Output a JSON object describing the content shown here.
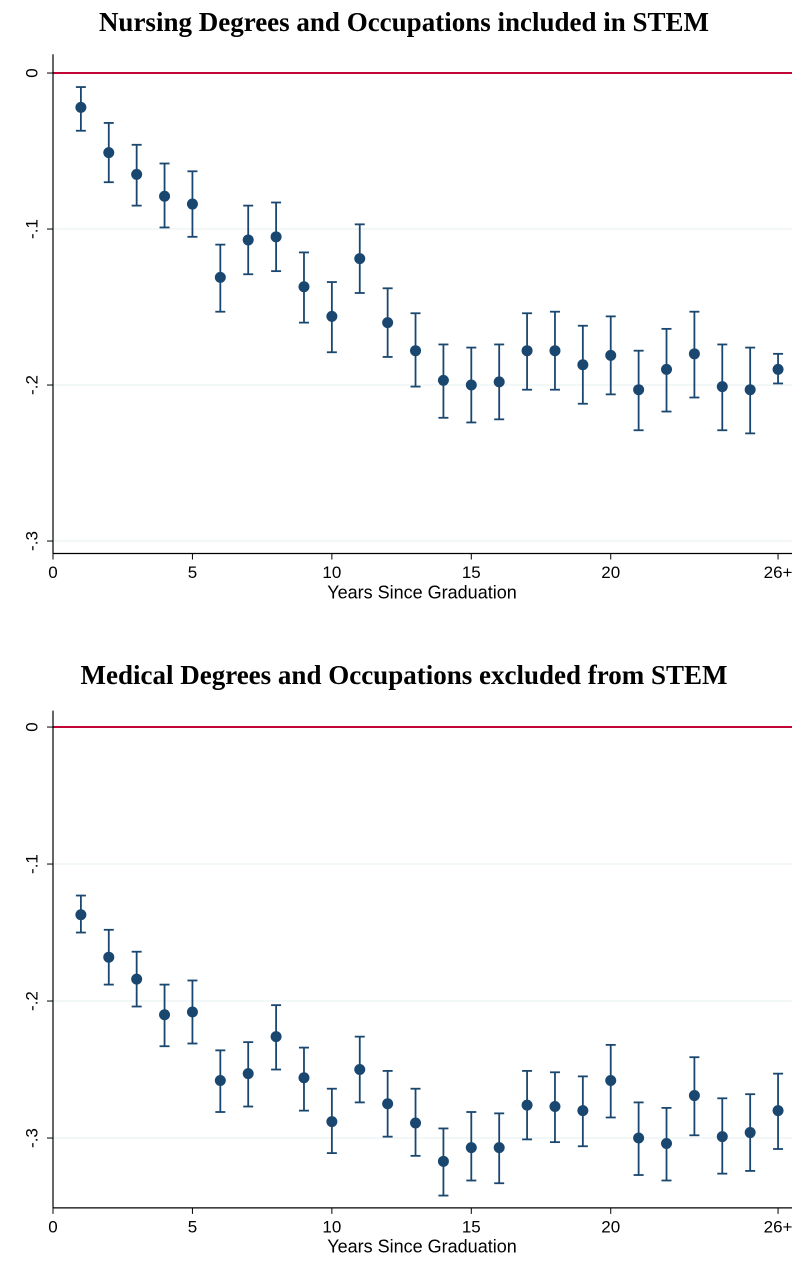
{
  "chart_data": [
    {
      "type": "errorbar",
      "title": "Nursing Degrees and Occupations included in STEM",
      "x_label": "Years Since Graduation",
      "x": [
        1,
        2,
        3,
        4,
        5,
        6,
        7,
        8,
        9,
        10,
        11,
        12,
        13,
        14,
        15,
        16,
        17,
        18,
        19,
        20,
        21,
        22,
        23,
        24,
        25,
        26
      ],
      "values": [
        -0.022,
        -0.051,
        -0.065,
        -0.079,
        -0.084,
        -0.131,
        -0.107,
        -0.105,
        -0.137,
        -0.156,
        -0.119,
        -0.16,
        -0.178,
        -0.197,
        -0.2,
        -0.198,
        -0.178,
        -0.178,
        -0.187,
        -0.181,
        -0.203,
        -0.19,
        -0.18,
        -0.201,
        -0.203,
        -0.19
      ],
      "upper": [
        -0.009,
        -0.032,
        -0.046,
        -0.058,
        -0.063,
        -0.11,
        -0.085,
        -0.083,
        -0.115,
        -0.134,
        -0.097,
        -0.138,
        -0.154,
        -0.174,
        -0.176,
        -0.174,
        -0.154,
        -0.153,
        -0.162,
        -0.156,
        -0.178,
        -0.164,
        -0.153,
        -0.174,
        -0.176,
        -0.18
      ],
      "lower": [
        -0.037,
        -0.07,
        -0.085,
        -0.099,
        -0.105,
        -0.153,
        -0.129,
        -0.127,
        -0.16,
        -0.179,
        -0.141,
        -0.182,
        -0.201,
        -0.221,
        -0.224,
        -0.222,
        -0.203,
        -0.203,
        -0.212,
        -0.206,
        -0.229,
        -0.217,
        -0.208,
        -0.229,
        -0.231,
        -0.199
      ],
      "color": "#1a476f",
      "reference_line": 0,
      "reference_color": "#c10534",
      "xlim": [
        0,
        26.5
      ],
      "xticks": [
        0,
        5,
        10,
        15,
        20,
        {
          "value": 26,
          "label": "26+"
        }
      ],
      "ylim": [
        -0.308,
        0.012
      ],
      "yticks": [
        {
          "value": 0,
          "label": "0"
        },
        {
          "value": -0.1,
          "label": "-.1"
        },
        {
          "value": -0.2,
          "label": "-.2"
        },
        {
          "value": -0.3,
          "label": "-.3"
        }
      ],
      "grid": true
    },
    {
      "type": "errorbar",
      "title": "Medical Degrees and Occupations excluded from STEM",
      "x_label": "Years Since Graduation",
      "x": [
        1,
        2,
        3,
        4,
        5,
        6,
        7,
        8,
        9,
        10,
        11,
        12,
        13,
        14,
        15,
        16,
        17,
        18,
        19,
        20,
        21,
        22,
        23,
        24,
        25,
        26
      ],
      "values": [
        -0.137,
        -0.168,
        -0.184,
        -0.21,
        -0.208,
        -0.258,
        -0.253,
        -0.226,
        -0.256,
        -0.288,
        -0.25,
        -0.275,
        -0.289,
        -0.317,
        -0.307,
        -0.307,
        -0.276,
        -0.277,
        -0.28,
        -0.258,
        -0.3,
        -0.304,
        -0.269,
        -0.299,
        -0.296,
        -0.28
      ],
      "upper": [
        -0.123,
        -0.148,
        -0.164,
        -0.188,
        -0.185,
        -0.236,
        -0.23,
        -0.203,
        -0.234,
        -0.264,
        -0.226,
        -0.251,
        -0.264,
        -0.293,
        -0.281,
        -0.282,
        -0.251,
        -0.252,
        -0.255,
        -0.232,
        -0.274,
        -0.278,
        -0.241,
        -0.271,
        -0.268,
        -0.253
      ],
      "lower": [
        -0.15,
        -0.188,
        -0.204,
        -0.233,
        -0.231,
        -0.281,
        -0.277,
        -0.25,
        -0.28,
        -0.311,
        -0.274,
        -0.299,
        -0.313,
        -0.342,
        -0.331,
        -0.333,
        -0.301,
        -0.303,
        -0.306,
        -0.285,
        -0.327,
        -0.331,
        -0.298,
        -0.326,
        -0.324,
        -0.308
      ],
      "color": "#1a476f",
      "reference_line": 0,
      "reference_color": "#c10534",
      "xlim": [
        0,
        26.5
      ],
      "xticks": [
        0,
        5,
        10,
        15,
        20,
        {
          "value": 26,
          "label": "26+"
        }
      ],
      "ylim": [
        -0.351,
        0.012
      ],
      "yticks": [
        {
          "value": 0,
          "label": "0"
        },
        {
          "value": -0.1,
          "label": "-.1"
        },
        {
          "value": -0.2,
          "label": "-.2"
        },
        {
          "value": -0.3,
          "label": "-.3"
        }
      ],
      "grid": true
    }
  ]
}
